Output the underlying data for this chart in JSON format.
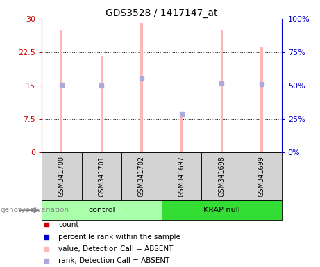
{
  "title": "GDS3528 / 1417147_at",
  "samples": [
    "GSM341700",
    "GSM341701",
    "GSM341702",
    "GSM341697",
    "GSM341698",
    "GSM341699"
  ],
  "bar_values": [
    27.5,
    21.5,
    29.0,
    8.5,
    27.5,
    23.5
  ],
  "bar_color": "#ffb6b6",
  "rank_values": [
    15.2,
    15.0,
    16.5,
    8.5,
    15.5,
    15.3
  ],
  "rank_color": "#aaaadd",
  "ylim_left": [
    0,
    30
  ],
  "ylim_right": [
    0,
    100
  ],
  "yticks_left": [
    0,
    7.5,
    15,
    22.5,
    30
  ],
  "yticks_right": [
    0,
    25,
    50,
    75,
    100
  ],
  "ytick_labels_left": [
    "0",
    "7.5",
    "15",
    "22.5",
    "30"
  ],
  "ytick_labels_right": [
    "0%",
    "25%",
    "50%",
    "75%",
    "100%"
  ],
  "left_axis_color": "#cc0000",
  "right_axis_color": "#0000cc",
  "bar_width": 0.06,
  "rank_marker_size": 4,
  "group_spans": [
    {
      "label": "control",
      "start": 0,
      "end": 2,
      "color": "#aaffaa"
    },
    {
      "label": "KRAP null",
      "start": 3,
      "end": 5,
      "color": "#33dd33"
    }
  ],
  "legend_items": [
    {
      "label": "count",
      "color": "#cc0000"
    },
    {
      "label": "percentile rank within the sample",
      "color": "#0000cc"
    },
    {
      "label": "value, Detection Call = ABSENT",
      "color": "#ffb6b6"
    },
    {
      "label": "rank, Detection Call = ABSENT",
      "color": "#aaaadd"
    }
  ],
  "genotype_label": "genotype/variation"
}
